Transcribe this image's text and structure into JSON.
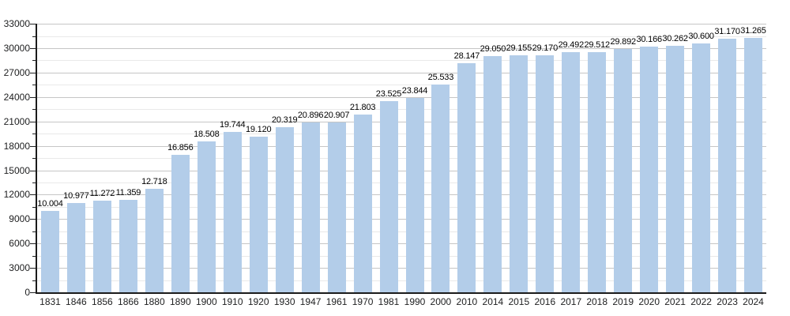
{
  "chart_data": {
    "type": "bar",
    "title": "",
    "xlabel": "",
    "ylabel": "",
    "legend": "none",
    "grid": "major and minor horizontal gridlines",
    "ylim": [
      0,
      33000
    ],
    "y_major_step": 3000,
    "y_minor_step": 1500,
    "y_tick_labels": [
      "0",
      "3000",
      "6000",
      "9000",
      "12000",
      "15000",
      "18000",
      "21000",
      "24000",
      "27000",
      "30000",
      "33000"
    ],
    "bar_color": "#b3cde9",
    "categories": [
      "1831",
      "1846",
      "1856",
      "1866",
      "1880",
      "1890",
      "1900",
      "1910",
      "1920",
      "1930",
      "1947",
      "1961",
      "1970",
      "1981",
      "1990",
      "2000",
      "2010",
      "2014",
      "2015",
      "2016",
      "2017",
      "2018",
      "2019",
      "2020",
      "2021",
      "2022",
      "2023",
      "2024"
    ],
    "values": [
      10004,
      10977,
      11272,
      11359,
      12718,
      16856,
      18508,
      19744,
      19120,
      20319,
      20896,
      20907,
      21803,
      23525,
      23844,
      25533,
      28147,
      29050,
      29155,
      29170,
      29492,
      29512,
      29892,
      30166,
      30262,
      30600,
      31170,
      31265
    ],
    "value_labels": [
      "10.004",
      "10.977",
      "11.272",
      "11.359",
      "12.718",
      "16.856",
      "18.508",
      "19.744",
      "19.120",
      "20.319",
      "20.896",
      "20.907",
      "21.803",
      "23.525",
      "23.844",
      "25.533",
      "28.147",
      "29.050",
      "29.155",
      "29.170",
      "29.492",
      "29.512",
      "29.892",
      "30.166",
      "30.262",
      "30.600",
      "31.170",
      "31.265"
    ]
  }
}
